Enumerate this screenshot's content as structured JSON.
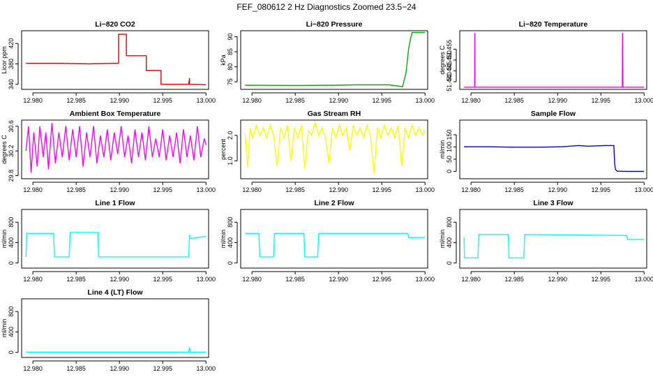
{
  "figure_title": "FEF_080612  2 Hz Diagnostics Zoomed 23.5−24",
  "chart_data": [
    {
      "type": "line",
      "title": "Li−820 CO2",
      "ylabel": "Licor ppm",
      "xlim": [
        12.9787,
        13.0003
      ],
      "ylim": [
        330,
        445
      ],
      "xticks": [
        12.98,
        12.985,
        12.99,
        12.995,
        13.0
      ],
      "xtick_labels": [
        "12.980",
        "12.985",
        "12.990",
        "12.995",
        "13.000"
      ],
      "yticks": [
        340,
        380,
        420
      ],
      "ytick_labels": [
        "340",
        "380",
        "420"
      ],
      "color": "#dd0000",
      "series": [
        {
          "x": [
            12.9792,
            12.983,
            12.9865,
            12.9895,
            12.9899,
            12.9899,
            12.9908,
            12.9908,
            12.9931,
            12.9931,
            12.9948,
            12.9948,
            12.998,
            12.9981,
            12.9981,
            13.0
          ],
          "y": [
            381,
            381,
            380,
            381,
            381,
            438,
            438,
            396,
            396,
            367,
            367,
            340,
            340,
            352,
            340,
            339
          ]
        }
      ]
    },
    {
      "type": "line",
      "title": "Li−820 Pressure",
      "ylabel": "kPa",
      "xlim": [
        12.9787,
        13.0003
      ],
      "ylim": [
        72.5,
        92
      ],
      "xticks": [
        12.98,
        12.985,
        12.99,
        12.995,
        13.0
      ],
      "xtick_labels": [
        "12.980",
        "12.985",
        "12.990",
        "12.995",
        "13.000"
      ],
      "yticks": [
        75,
        80,
        85,
        90
      ],
      "ytick_labels": [
        "75",
        "80",
        "85",
        "90"
      ],
      "color": "#00aa00",
      "series": [
        {
          "x": [
            12.9792,
            12.985,
            12.99,
            12.992,
            12.9958,
            12.9974,
            12.9978,
            12.9981,
            12.9983,
            12.9985,
            13.0
          ],
          "y": [
            73.9,
            73.8,
            73.9,
            74.0,
            74.0,
            73.4,
            78,
            86,
            89,
            91.4,
            91.4
          ]
        }
      ]
    },
    {
      "type": "line",
      "title": "Li−820 Temperature",
      "ylabel": "degrees C",
      "xlim": [
        12.9787,
        13.0003
      ],
      "ylim": [
        51.4365,
        51.4635
      ],
      "xticks": [
        12.98,
        12.985,
        12.99,
        12.995,
        13.0
      ],
      "xtick_labels": [
        "12.980",
        "12.985",
        "12.990",
        "12.995",
        "13.000"
      ],
      "yticks": [
        51.44,
        51.445,
        51.45,
        51.455
      ],
      "ytick_labels": [
        "51.440",
        "51.445",
        "51.450",
        "51.455"
      ],
      "color": "#ee00ee",
      "series": [
        {
          "x": [
            12.9792,
            12.98042,
            12.98044,
            12.98046,
            12.99748,
            12.9975,
            12.99752,
            12.99756,
            13.0
          ],
          "y": [
            51.4375,
            51.4375,
            51.4625,
            51.4375,
            51.4375,
            51.4625,
            51.4515,
            51.4375,
            51.4375
          ]
        }
      ]
    },
    {
      "type": "line",
      "title": "Ambient Box Temperature",
      "ylabel": "degrees C",
      "xlim": [
        12.9787,
        13.0003
      ],
      "ylim": [
        29.75,
        30.7
      ],
      "xticks": [
        12.98,
        12.985,
        12.99,
        12.995,
        13.0
      ],
      "xtick_labels": [
        "12.980",
        "12.985",
        "12.990",
        "12.995",
        "13.000"
      ],
      "yticks": [
        29.8,
        30.2,
        30.6
      ],
      "ytick_labels": [
        "29.8",
        "30.2",
        "30.6"
      ],
      "color": "#ff00ff",
      "series": [
        {
          "x": [
            12.9792,
            12.9795,
            12.9798,
            12.9801,
            12.9805,
            12.9808,
            12.9812,
            12.9815,
            12.9818,
            12.9822,
            12.9826,
            12.983,
            12.9834,
            12.9838,
            12.9842,
            12.9846,
            12.985,
            12.9854,
            12.9858,
            12.9862,
            12.9866,
            12.987,
            12.9874,
            12.9878,
            12.9882,
            12.9886,
            12.989,
            12.9894,
            12.9898,
            12.9902,
            12.9906,
            12.991,
            12.9914,
            12.9918,
            12.9922,
            12.9926,
            12.993,
            12.9934,
            12.9938,
            12.9942,
            12.9946,
            12.995,
            12.9954,
            12.9958,
            12.9962,
            12.9966,
            12.997,
            12.9974,
            12.9978,
            12.9982,
            12.9986,
            12.999,
            12.9994,
            12.9998,
            13.0
          ],
          "y": [
            30.2,
            30.6,
            29.85,
            30.5,
            29.95,
            30.6,
            30.1,
            30.5,
            29.9,
            30.65,
            30.0,
            30.5,
            30.1,
            30.6,
            30.05,
            30.55,
            30.1,
            30.6,
            29.95,
            30.5,
            30.1,
            30.6,
            30.0,
            30.45,
            30.1,
            30.55,
            30.05,
            30.5,
            30.15,
            30.6,
            30.1,
            30.45,
            30.0,
            30.55,
            30.1,
            30.5,
            30.05,
            30.6,
            30.1,
            30.4,
            30.1,
            30.55,
            30.05,
            30.45,
            30.1,
            30.5,
            30.0,
            30.55,
            30.1,
            30.45,
            30.05,
            30.6,
            30.1,
            30.4,
            30.3
          ]
        }
      ]
    },
    {
      "type": "line",
      "title": "Gas Stream RH",
      "ylabel": "percent",
      "xlim": [
        12.9787,
        13.0003
      ],
      "ylim": [
        0.3,
        2.6
      ],
      "xticks": [
        12.98,
        12.985,
        12.99,
        12.995,
        13.0
      ],
      "xtick_labels": [
        "12.980",
        "12.985",
        "12.990",
        "12.995",
        "13.000"
      ],
      "yticks": [
        1.0,
        2.0
      ],
      "ytick_labels": [
        "1.0",
        "2.0"
      ],
      "color": "#ffff00",
      "series": [
        {
          "x": [
            12.9792,
            12.9795,
            12.9798,
            12.9801,
            12.9805,
            12.9809,
            12.9813,
            12.9817,
            12.9821,
            12.9825,
            12.9829,
            12.9833,
            12.9837,
            12.9841,
            12.9845,
            12.9849,
            12.9853,
            12.9857,
            12.9861,
            12.9865,
            12.9869,
            12.9873,
            12.9877,
            12.9881,
            12.9885,
            12.9889,
            12.9893,
            12.9897,
            12.9901,
            12.9905,
            12.9909,
            12.9913,
            12.9917,
            12.9921,
            12.9925,
            12.9929,
            12.9933,
            12.9937,
            12.9941,
            12.9945,
            12.9949,
            12.9953,
            12.9957,
            12.9961,
            12.9965,
            12.9969,
            12.9973,
            12.9977,
            12.9981,
            12.9985,
            12.9989,
            12.9993,
            12.9997,
            13.0
          ],
          "y": [
            2.1,
            0.75,
            2.3,
            1.9,
            2.4,
            2.0,
            2.3,
            1.9,
            2.4,
            2.0,
            0.8,
            2.3,
            1.9,
            2.4,
            1.0,
            2.3,
            1.9,
            2.4,
            0.7,
            2.2,
            2.0,
            2.5,
            2.0,
            2.3,
            1.9,
            0.9,
            2.3,
            1.9,
            2.4,
            2.0,
            2.3,
            1.4,
            2.4,
            2.0,
            2.3,
            1.9,
            2.4,
            2.0,
            0.5,
            2.3,
            1.9,
            2.4,
            2.0,
            2.3,
            1.9,
            2.4,
            0.8,
            2.3,
            1.9,
            2.4,
            2.0,
            2.3,
            2.0,
            2.2
          ]
        }
      ]
    },
    {
      "type": "line",
      "title": "Sample Flow",
      "ylabel": "ml/min",
      "xlim": [
        12.9787,
        13.0003
      ],
      "ylim": [
        -30,
        210
      ],
      "xticks": [
        12.98,
        12.985,
        12.99,
        12.995,
        13.0
      ],
      "xtick_labels": [
        "12.980",
        "12.985",
        "12.990",
        "12.995",
        "13.000"
      ],
      "yticks": [
        0,
        50,
        100,
        150
      ],
      "ytick_labels": [
        "0",
        "50",
        "100",
        "150"
      ],
      "color": "#0000cc",
      "series": [
        {
          "x": [
            12.9792,
            12.982,
            12.985,
            12.988,
            12.9905,
            12.9925,
            12.9935,
            12.9955,
            12.9965,
            12.9966,
            12.9967,
            12.9969,
            12.998,
            13.0
          ],
          "y": [
            101,
            101,
            99,
            99,
            101,
            106,
            103,
            106,
            106,
            30,
            8,
            1,
            0,
            0
          ]
        }
      ]
    },
    {
      "type": "line",
      "title": "Line 1 Flow",
      "ylabel": "ml/min",
      "xlim": [
        12.9787,
        13.0003
      ],
      "ylim": [
        -100,
        1050
      ],
      "xticks": [
        12.98,
        12.985,
        12.99,
        12.995,
        13.0
      ],
      "xtick_labels": [
        "12.980",
        "12.985",
        "12.990",
        "12.995",
        "13.000"
      ],
      "yticks": [
        0,
        400,
        800
      ],
      "ytick_labels": [
        "0",
        "400",
        "800"
      ],
      "color": "#00ffff",
      "series": [
        {
          "x": [
            12.9792,
            12.9793,
            12.9824,
            12.9825,
            12.9842,
            12.9843,
            12.9875,
            12.9876,
            12.998,
            12.9981,
            12.99815,
            13.0
          ],
          "y": [
            120,
            580,
            580,
            120,
            120,
            600,
            600,
            120,
            120,
            560,
            480,
            520
          ]
        }
      ]
    },
    {
      "type": "line",
      "title": "Line 2 Flow",
      "ylabel": "ml/min",
      "xlim": [
        12.9787,
        13.0003
      ],
      "ylim": [
        -100,
        1050
      ],
      "xticks": [
        12.98,
        12.985,
        12.99,
        12.995,
        13.0
      ],
      "xtick_labels": [
        "12.980",
        "12.985",
        "12.990",
        "12.995",
        "13.000"
      ],
      "yticks": [
        0,
        400,
        800
      ],
      "ytick_labels": [
        "0",
        "400",
        "800"
      ],
      "color": "#00ffff",
      "series": [
        {
          "x": [
            12.9792,
            12.9808,
            12.9809,
            12.9825,
            12.9826,
            12.986,
            12.9861,
            12.9876,
            12.9877,
            12.998,
            12.9981,
            13.0
          ],
          "y": [
            580,
            580,
            120,
            120,
            580,
            580,
            120,
            120,
            580,
            580,
            500,
            500
          ]
        }
      ]
    },
    {
      "type": "line",
      "title": "Line 3 Flow",
      "ylabel": "ml/min",
      "xlim": [
        12.9787,
        13.0003
      ],
      "ylim": [
        -100,
        1050
      ],
      "xticks": [
        12.98,
        12.985,
        12.99,
        12.995,
        13.0
      ],
      "xtick_labels": [
        "12.980",
        "12.985",
        "12.990",
        "12.995",
        "13.000"
      ],
      "yticks": [
        0,
        400,
        800
      ],
      "ytick_labels": [
        "0",
        "400",
        "800"
      ],
      "color": "#00ffff",
      "series": [
        {
          "x": [
            12.9792,
            12.97925,
            12.9808,
            12.9809,
            12.9843,
            12.9844,
            12.9861,
            12.9862,
            12.998,
            12.9981,
            13.0
          ],
          "y": [
            500,
            100,
            100,
            560,
            560,
            100,
            100,
            560,
            540,
            460,
            460
          ]
        }
      ]
    },
    {
      "type": "line",
      "title": "Line 4 (LT) Flow",
      "ylabel": "ml/min",
      "xlim": [
        12.9787,
        13.0003
      ],
      "ylim": [
        -100,
        1050
      ],
      "xticks": [
        12.98,
        12.985,
        12.99,
        12.995,
        13.0
      ],
      "xtick_labels": [
        "12.980",
        "12.985",
        "12.990",
        "12.995",
        "13.000"
      ],
      "yticks": [
        0,
        400,
        800
      ],
      "ytick_labels": [
        "0",
        "400",
        "800"
      ],
      "color": "#00ffff",
      "series": [
        {
          "x": [
            12.9792,
            12.998,
            12.9981,
            12.99815,
            12.9982,
            13.0
          ],
          "y": [
            5,
            5,
            100,
            30,
            5,
            5
          ]
        }
      ]
    }
  ]
}
